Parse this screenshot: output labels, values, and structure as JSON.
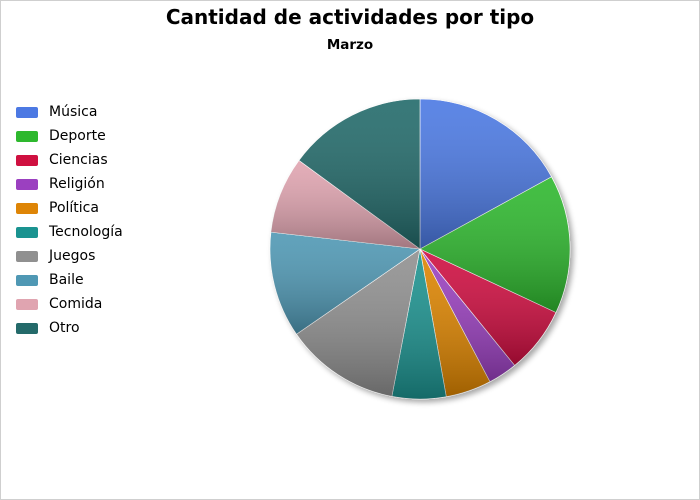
{
  "chart_data": {
    "type": "pie",
    "title": "Cantidad de actividades por tipo",
    "subtitle": "Marzo",
    "legend_position": "left",
    "slices": [
      {
        "label": "Música",
        "value": 17.3,
        "color": "#4c79e3"
      },
      {
        "label": "Deporte",
        "value": 15.2,
        "color": "#2eb82e"
      },
      {
        "label": "Ciencias",
        "value": 7.3,
        "color": "#cf1040"
      },
      {
        "label": "Religión",
        "value": 3.2,
        "color": "#9b40c0"
      },
      {
        "label": "Política",
        "value": 5.0,
        "color": "#de8506"
      },
      {
        "label": "Tecnología",
        "value": 5.9,
        "color": "#1a9390"
      },
      {
        "label": "Juegos",
        "value": 12.6,
        "color": "#909090"
      },
      {
        "label": "Baile",
        "value": 11.6,
        "color": "#4f98b4"
      },
      {
        "label": "Comida",
        "value": 8.4,
        "color": "#e0a4b0"
      },
      {
        "label": "Otro",
        "value": 15.2,
        "color": "#246a6a"
      }
    ]
  }
}
